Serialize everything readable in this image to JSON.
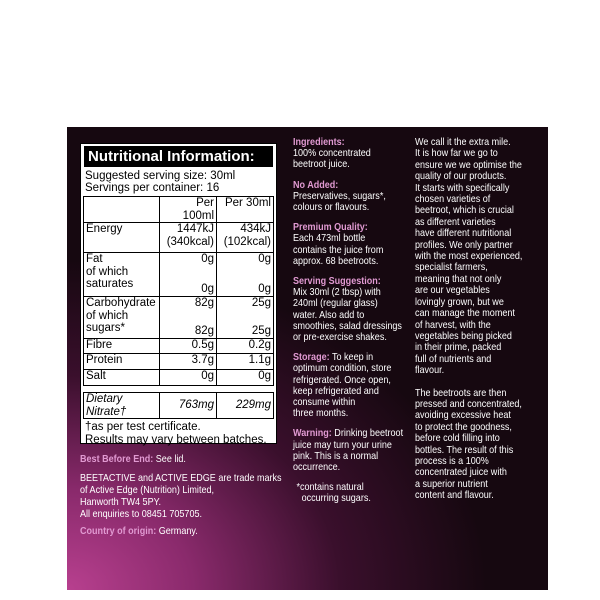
{
  "nutrition": {
    "title": "Nutritional Information:",
    "serving_size": "Suggested serving size: 30ml",
    "servings": "Servings per container: 16",
    "columns": [
      "Per 100ml",
      "Per 30ml"
    ],
    "rows": [
      {
        "label": [
          "Energy"
        ],
        "per_100ml": [
          "1447kJ",
          "(340kcal)"
        ],
        "per_30ml": [
          "434kJ",
          "(102kcal)"
        ]
      },
      {
        "label": [
          "Fat",
          "of which",
          "saturates"
        ],
        "per_100ml": [
          "0g",
          "0g"
        ],
        "per_30ml": [
          "0g",
          "0g"
        ]
      },
      {
        "label": [
          "Carbohydrate",
          "of which",
          "sugars*"
        ],
        "per_100ml": [
          "82g",
          "82g"
        ],
        "per_30ml": [
          "25g",
          "25g"
        ]
      },
      {
        "label": [
          "Fibre"
        ],
        "per_100ml": [
          "0.5g"
        ],
        "per_30ml": [
          "0.2g"
        ]
      },
      {
        "label": [
          "Protein"
        ],
        "per_100ml": [
          "3.7g"
        ],
        "per_30ml": [
          "1.1g"
        ]
      },
      {
        "label": [
          "Salt"
        ],
        "per_100ml": [
          "0g"
        ],
        "per_30ml": [
          "0g"
        ]
      }
    ],
    "nitrate": {
      "label": "Dietary Nitrate†",
      "per_100ml": "763mg",
      "per_30ml": "229mg"
    },
    "footnote": [
      "†as per test certificate.",
      "Results may vary between batches."
    ]
  },
  "left_info": {
    "best_before": {
      "heading": "Best Before End:",
      "text": "See lid."
    },
    "trademark": [
      "BEETACTIVE and ACTIVE EDGE are trade marks",
      "of Active Edge (Nutrition) Limited,",
      "Hanworth TW4 5PY.",
      "All enquiries to 08451 705705."
    ],
    "origin": {
      "heading": "Country of origin:",
      "text": "Germany."
    }
  },
  "middle_column": [
    {
      "heading": "Ingredients:",
      "lines": [
        "100% concentrated",
        "beetroot juice."
      ]
    },
    {
      "heading": "No Added:",
      "lines": [
        "Preservatives, sugars*,",
        "colours or flavours."
      ]
    },
    {
      "heading": "Premium Quality:",
      "lines": [
        "Each 473ml bottle",
        "contains the juice from",
        "approx. 68 beetroots."
      ]
    },
    {
      "heading": "Serving Suggestion:",
      "lines": [
        "Mix 30ml (2 tbsp) with",
        "240ml (regular glass)",
        "water. Also add to",
        "smoothies, salad dressings",
        "or pre-exercise shakes."
      ]
    },
    {
      "heading": "Storage:",
      "lines": [
        "To keep in",
        "optimum condition, store",
        "refrigerated. Once open,",
        "keep refrigerated and",
        "consume within",
        "three months."
      ]
    },
    {
      "heading": "Warning:",
      "lines": [
        "Drinking beetroot",
        "juice may turn your urine",
        "pink. This is a normal",
        "occurrence."
      ]
    }
  ],
  "note": [
    "*contains natural",
    "occurring sugars."
  ],
  "right_column": [
    [
      "We call it the extra mile.",
      "It is how far we go to",
      "ensure we we optimise the",
      "quality of our products.",
      "It starts with specifically",
      "chosen varieties of",
      "beetroot, which is crucial",
      "as different varieties",
      "have different nutritional",
      "profiles. We only partner",
      "with the most experienced,",
      "specialist farmers,",
      "meaning that not only",
      "are our vegetables",
      "lovingly grown, but we",
      "can manage the moment",
      "of harvest, with the",
      "vegetables being picked",
      "in their prime, packed",
      "full of nutrients and",
      "flavour."
    ],
    [
      "The beetroots are then",
      "pressed and concentrated,",
      "avoiding excessive heat",
      "to protect the goodness,",
      "before cold filling into",
      "bottles. The result of this",
      "process is a 100%",
      "concentrated juice with",
      "a superior nutrient",
      "content and flavour."
    ]
  ]
}
